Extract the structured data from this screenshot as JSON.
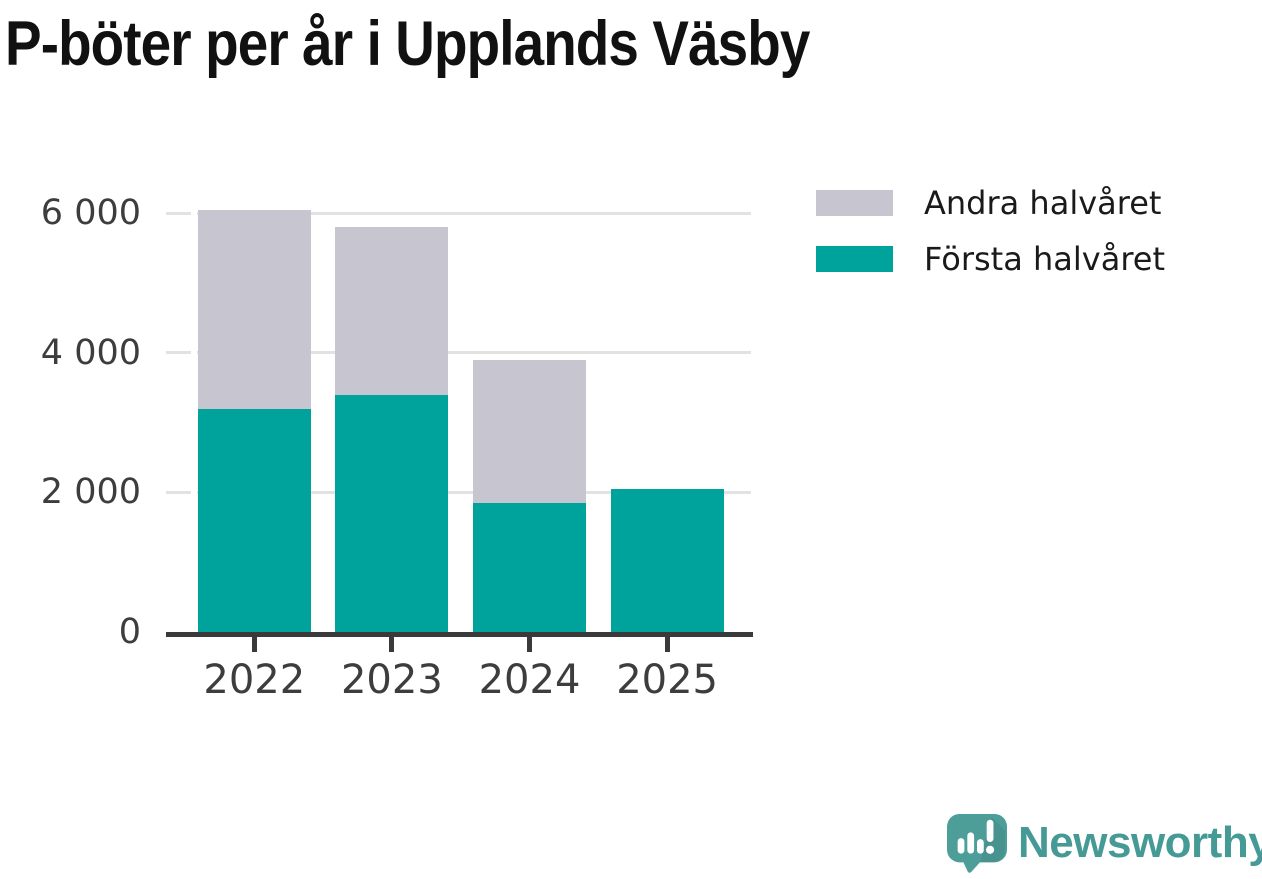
{
  "title": "P-böter per år i Upplands Väsby",
  "legend": {
    "items": [
      {
        "key": "andra",
        "label": "Andra halvåret",
        "color": "#c7c5cf"
      },
      {
        "key": "forsta",
        "label": "Första halvåret",
        "color": "#00a39b"
      }
    ]
  },
  "chart_data": {
    "type": "bar",
    "stacked": true,
    "title": "P-böter per år i Upplands Väsby",
    "categories": [
      "2022",
      "2023",
      "2024",
      "2025"
    ],
    "series": [
      {
        "key": "forsta",
        "name": "Första halvåret",
        "color": "#00a39b",
        "values": [
          3200,
          3400,
          1850,
          2050
        ]
      },
      {
        "key": "andra",
        "name": "Andra halvåret",
        "color": "#c7c5cf",
        "values": [
          2850,
          2400,
          2050,
          0
        ]
      }
    ],
    "totals": [
      6050,
      5800,
      3900,
      2050
    ],
    "xlabel": "",
    "ylabel": "",
    "ylim": [
      0,
      6000
    ],
    "yticks": [
      {
        "value": 0,
        "label": "0"
      },
      {
        "value": 2000,
        "label": "2 000"
      },
      {
        "value": 4000,
        "label": "4 000"
      },
      {
        "value": 6000,
        "label": "6 000"
      }
    ],
    "grid": true,
    "legend_position": "top-right"
  },
  "branding": {
    "logo_text": "Newsworthy",
    "logo_text_color": "#459a96",
    "logo_mark_color": "#4d9d99"
  },
  "colors": {
    "grid": "#e2e2e2",
    "axis": "#3a3a3a",
    "axis_text": "#3d3d3d",
    "title_text": "#111111",
    "background": "#ffffff"
  }
}
